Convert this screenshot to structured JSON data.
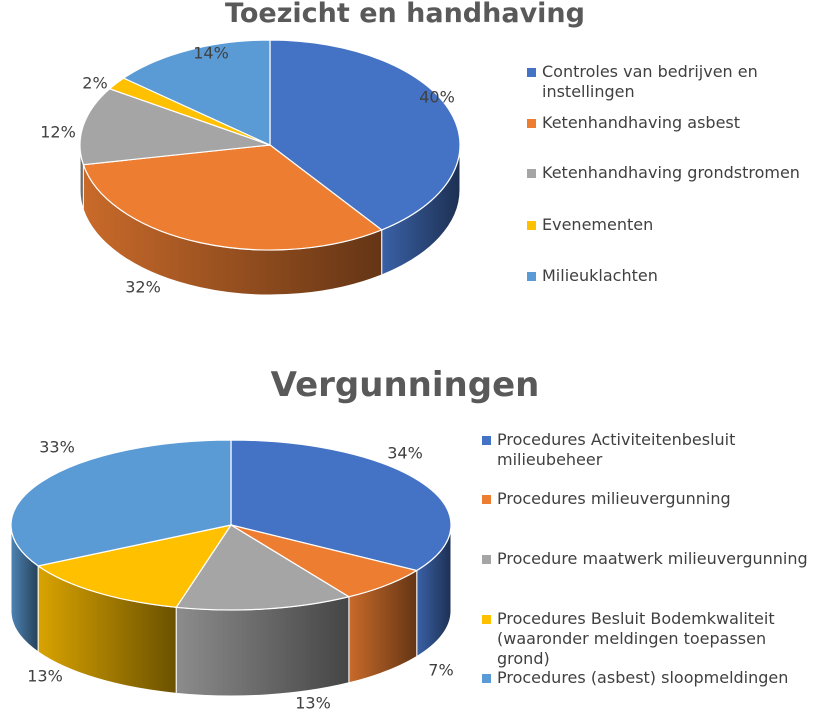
{
  "chart_data": [
    {
      "type": "pie",
      "title": "Toezicht en handhaving",
      "legend_position": "right",
      "labels": [
        "Controles van bedrijven en instellingen",
        "Ketenhandhaving asbest",
        "Ketenhandhaving grondstromen",
        "Evenementen",
        "Milieuklachten"
      ],
      "values": [
        40,
        32,
        12,
        2,
        14
      ],
      "value_labels": [
        "40%",
        "32%",
        "12%",
        "2%",
        "14%"
      ],
      "colors": [
        "#4472C4",
        "#ED7D31",
        "#A5A5A5",
        "#FFC000",
        "#5B9BD5"
      ]
    },
    {
      "type": "pie",
      "title": "Vergunningen",
      "legend_position": "right",
      "labels": [
        "Procedures Activiteitenbesluit milieubeheer",
        "Procedures milieuvergunning",
        "Procedure maatwerk milieuvergunning",
        "Procedures Besluit Bodemkwaliteit (waaronder meldingen toepassen grond)",
        "Procedures (asbest) sloopmeldingen"
      ],
      "values": [
        34,
        7,
        13,
        13,
        33
      ],
      "value_labels": [
        "34%",
        "7%",
        "13%",
        "13%",
        "33%"
      ],
      "colors": [
        "#4472C4",
        "#ED7D31",
        "#A5A5A5",
        "#FFC000",
        "#5B9BD5"
      ]
    }
  ]
}
